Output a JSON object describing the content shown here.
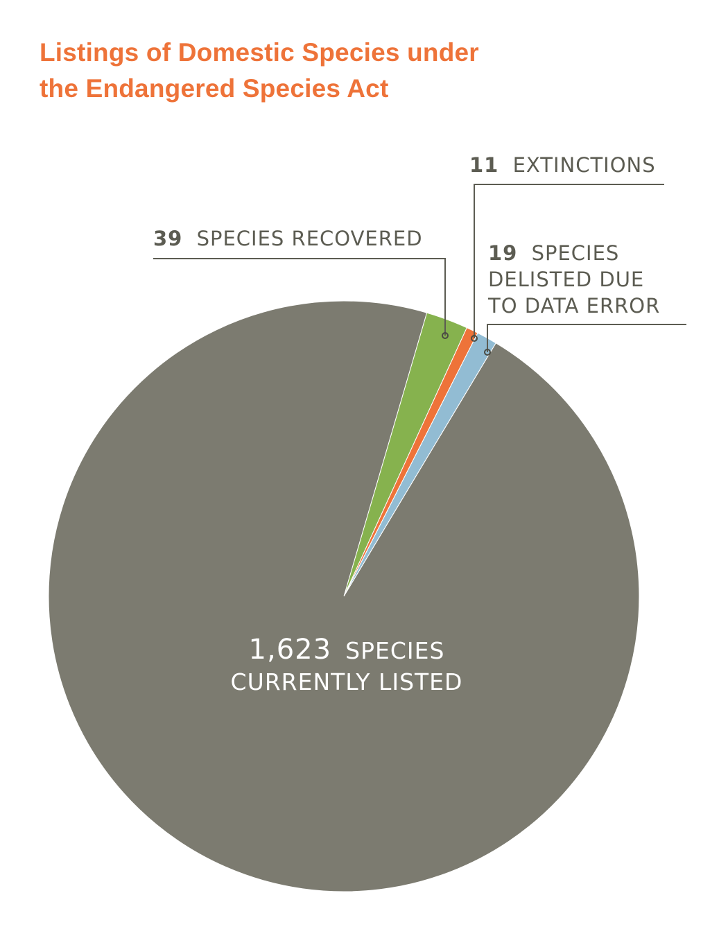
{
  "title": {
    "line1": "Listings of Domestic Species under",
    "line2": "the Endangered Species Act"
  },
  "chart_data": {
    "type": "pie",
    "slices": [
      {
        "label": "SPECIES CURRENTLY LISTED",
        "value": 1623,
        "color": "#7c7b70"
      },
      {
        "label": "SPECIES RECOVERED",
        "value": 39,
        "color": "#86b24e"
      },
      {
        "label": "EXTINCTIONS",
        "value": 11,
        "color": "#ee7339"
      },
      {
        "label": "SPECIES DELISTED DUE TO DATA ERROR",
        "value": 19,
        "color": "#92bcd3"
      }
    ],
    "annotations": {
      "listed_num": "1,623",
      "listed_line1": "SPECIES",
      "listed_line2": "CURRENTLY LISTED",
      "recovered_num": "39",
      "recovered_text": "SPECIES RECOVERED",
      "extinct_num": "11",
      "extinct_text": "EXTINCTIONS",
      "delisted_num": "19",
      "delisted_line1": "SPECIES",
      "delisted_line2": "DELISTED DUE",
      "delisted_line3": "TO DATA ERROR"
    }
  }
}
